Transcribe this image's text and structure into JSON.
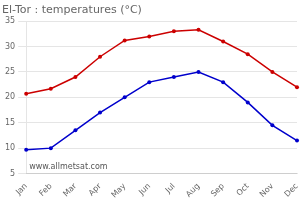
{
  "chart_data": {
    "type": "line",
    "title": "El-Tor : temperatures (°C)",
    "categories": [
      "Jan",
      "Feb",
      "Mar",
      "Apr",
      "May",
      "Jun",
      "Jul",
      "Aug",
      "Sep",
      "Oct",
      "Nov",
      "Dec"
    ],
    "series": [
      {
        "color": "#cc0000",
        "marker": "circle",
        "line_style": "solid",
        "values": [
          20.7,
          21.7,
          24.0,
          28.0,
          31.2,
          32.0,
          33.0,
          33.3,
          31.0,
          28.5,
          25.0,
          22.0
        ]
      },
      {
        "color": "#0000cc",
        "marker": "circle",
        "line_style": "solid",
        "values": [
          9.7,
          10.0,
          13.5,
          17.0,
          20.0,
          23.0,
          24.0,
          25.0,
          23.0,
          19.0,
          14.5,
          11.5
        ]
      }
    ],
    "ylim": [
      5,
      35
    ],
    "yticks": [
      5,
      10,
      15,
      20,
      25,
      30,
      35
    ],
    "grid": "y",
    "annotation": "www.allmetsat.com"
  }
}
